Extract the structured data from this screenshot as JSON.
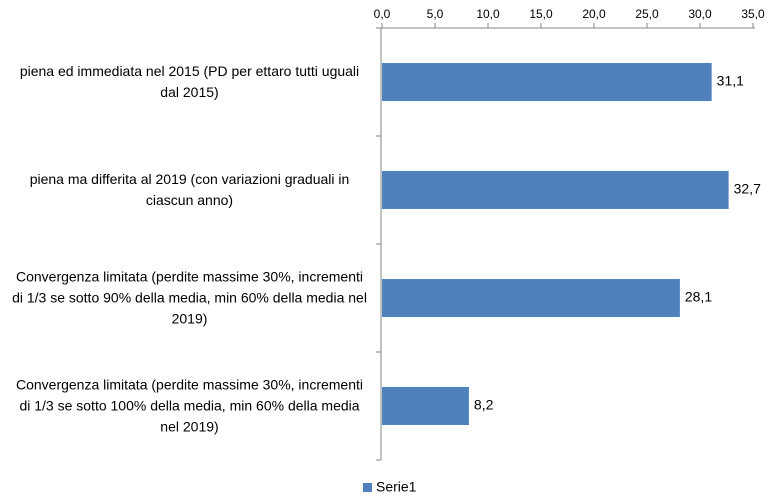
{
  "chart_data": {
    "type": "bar",
    "orientation": "horizontal",
    "categories": [
      "piena ed immediata nel 2015 (PD per ettaro tutti uguali dal 2015)",
      "piena ma differita al 2019 (con variazioni graduali in ciascun anno)",
      "Convergenza limitata (perdite massime 30%, incrementi di 1/3 se sotto 90% della media, min 60% della media nel 2019)",
      "Convergenza limitata (perdite massime 30%, incrementi di 1/3 se sotto 100% della media, min 60% della media nel 2019)"
    ],
    "series": [
      {
        "name": "Serie1",
        "color": "#4f81bd",
        "values": [
          31.1,
          32.7,
          28.1,
          8.2
        ],
        "value_labels": [
          "31,1",
          "32,7",
          "28,1",
          "8,2"
        ]
      }
    ],
    "xlim": [
      0,
      35
    ],
    "xticks": [
      {
        "value": 0,
        "label": "0,0"
      },
      {
        "value": 5,
        "label": "5,0"
      },
      {
        "value": 10,
        "label": "10,0"
      },
      {
        "value": 15,
        "label": "15,0"
      },
      {
        "value": 20,
        "label": "20,0"
      },
      {
        "value": 25,
        "label": "25,0"
      },
      {
        "value": 30,
        "label": "30,0"
      },
      {
        "value": 35,
        "label": "35,0"
      }
    ],
    "legend": "bottom"
  }
}
